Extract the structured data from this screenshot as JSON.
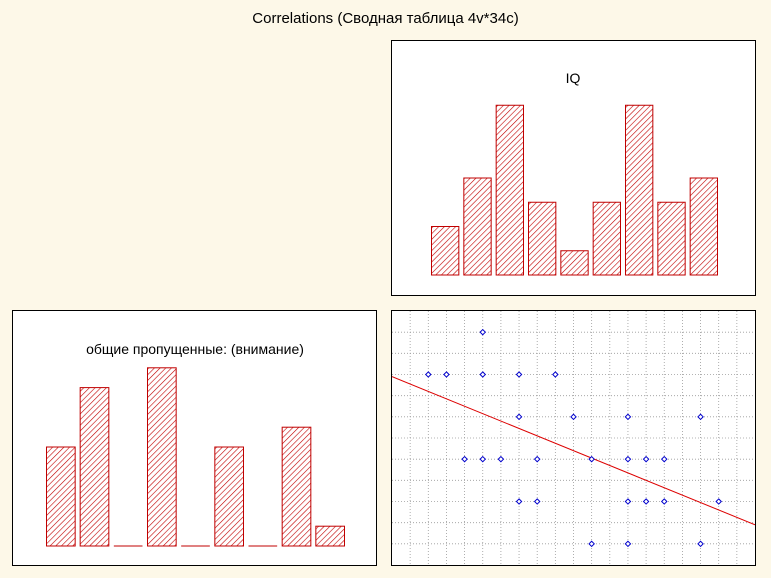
{
  "page": {
    "title": "Correlations (Сводная таблица 4v*34c)"
  },
  "colors": {
    "bar_stroke": "#c00000",
    "bar_hatch": "#c00000",
    "point": "#0000cc",
    "fit_line": "#dd0000",
    "grid": "#9a9a9a",
    "background": "#fdf8e8"
  },
  "chart_data": [
    {
      "type": "bar",
      "title": "IQ",
      "values": [
        2,
        4,
        7,
        3,
        1,
        3,
        7,
        3,
        4
      ],
      "ylim": [
        0,
        8
      ]
    },
    {
      "type": "bar",
      "title": "общие пропущенные: (внимание)",
      "values": [
        5,
        8,
        0,
        9,
        0,
        5,
        0,
        6,
        1
      ],
      "ylim": [
        0,
        10
      ]
    },
    {
      "type": "scatter",
      "xlim": [
        0,
        20
      ],
      "ylim": [
        0,
        12
      ],
      "grid": true,
      "points": [
        [
          5,
          11
        ],
        [
          2,
          9
        ],
        [
          3,
          9
        ],
        [
          5,
          9
        ],
        [
          7,
          9
        ],
        [
          9,
          9
        ],
        [
          7,
          7
        ],
        [
          10,
          7
        ],
        [
          13,
          7
        ],
        [
          17,
          7
        ],
        [
          4,
          5
        ],
        [
          5,
          5
        ],
        [
          6,
          5
        ],
        [
          8,
          5
        ],
        [
          11,
          5
        ],
        [
          13,
          5
        ],
        [
          14,
          5
        ],
        [
          15,
          5
        ],
        [
          7,
          3
        ],
        [
          8,
          3
        ],
        [
          13,
          3
        ],
        [
          14,
          3
        ],
        [
          15,
          3
        ],
        [
          18,
          3
        ],
        [
          11,
          1
        ],
        [
          13,
          1
        ],
        [
          17,
          1
        ]
      ],
      "fit_line": {
        "intercept": 8.9,
        "slope": -0.35
      }
    }
  ]
}
